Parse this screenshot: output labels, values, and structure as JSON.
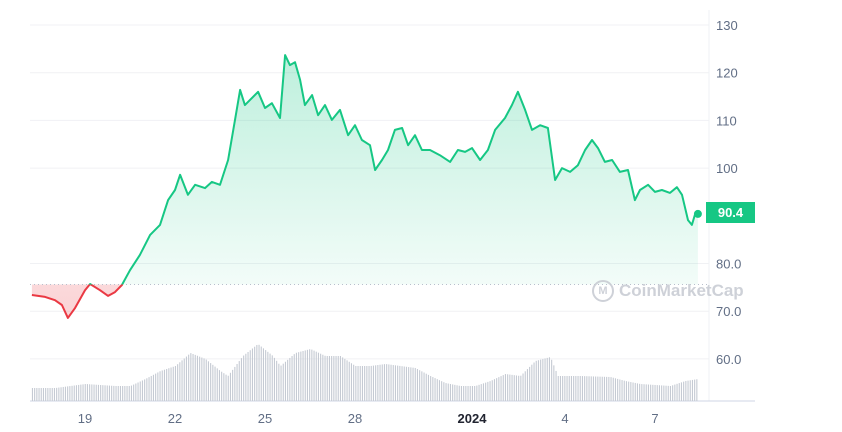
{
  "chart_data": {
    "type": "line",
    "title": "",
    "x_unit": "days since Dec 19",
    "x_ticks": [
      {
        "t": 0,
        "label": "19"
      },
      {
        "t": 3,
        "label": "22"
      },
      {
        "t": 6,
        "label": "25"
      },
      {
        "t": 9,
        "label": "28"
      },
      {
        "t": 12.9,
        "label": "2024",
        "bold": true
      },
      {
        "t": 16,
        "label": "4"
      },
      {
        "t": 19,
        "label": "7"
      }
    ],
    "y_ticks": [
      "130",
      "120",
      "110",
      "100",
      "80.0",
      "70.0",
      "60.0"
    ],
    "y_tick_values": [
      130,
      120,
      110,
      100,
      80,
      70,
      60
    ],
    "ylim": [
      57,
      131
    ],
    "baseline": 75.6,
    "current_price": "90.4",
    "up_color": "#16c784",
    "down_color": "#ea3943",
    "price_series": {
      "t": [
        -1.77,
        -1.33,
        -1.0,
        -0.77,
        -0.57,
        -0.33,
        0,
        0.17,
        0.5,
        0.77,
        1.0,
        1.23,
        1.5,
        1.83,
        2.17,
        2.5,
        2.77,
        3.0,
        3.17,
        3.43,
        3.67,
        4.0,
        4.23,
        4.5,
        4.77,
        5.0,
        5.17,
        5.33,
        5.5,
        5.77,
        6.0,
        6.23,
        6.5,
        6.67,
        6.83,
        7.0,
        7.17,
        7.33,
        7.57,
        7.77,
        8.0,
        8.23,
        8.5,
        8.77,
        9.0,
        9.23,
        9.5,
        9.67,
        9.9,
        10.1,
        10.33,
        10.57,
        10.77,
        11.0,
        11.23,
        11.5,
        11.83,
        12.17,
        12.43,
        12.67,
        12.9,
        13.17,
        13.43,
        13.67,
        14.0,
        14.23,
        14.43,
        14.67,
        14.9,
        15.17,
        15.43,
        15.67,
        15.9,
        16.17,
        16.43,
        16.67,
        16.9,
        17.1,
        17.33,
        17.57,
        17.83,
        18.1,
        18.33,
        18.5,
        18.77,
        19.0,
        19.23,
        19.5,
        19.73,
        19.9,
        20.1,
        20.23,
        20.33,
        20.43
      ],
      "values": [
        73.4,
        73.0,
        72.3,
        71.3,
        68.6,
        70.7,
        74.4,
        75.7,
        74.4,
        73.2,
        74.0,
        75.5,
        78.6,
        81.8,
        86.0,
        88.1,
        93.3,
        95.4,
        98.6,
        94.4,
        96.5,
        95.8,
        97.1,
        96.5,
        101.7,
        110.1,
        116.4,
        113.2,
        114.3,
        116.0,
        112.6,
        113.6,
        110.5,
        123.7,
        121.6,
        122.2,
        118.5,
        113.2,
        115.3,
        111.1,
        113.2,
        110.1,
        112.2,
        106.9,
        109.0,
        105.9,
        104.8,
        99.6,
        101.7,
        103.8,
        108.0,
        108.4,
        104.8,
        106.9,
        103.8,
        103.8,
        102.7,
        101.3,
        103.8,
        103.4,
        104.2,
        101.7,
        103.8,
        108.0,
        110.5,
        113.2,
        116.0,
        112.2,
        108.0,
        109.0,
        108.4,
        97.5,
        100.0,
        99.2,
        100.6,
        103.8,
        105.9,
        104.2,
        101.3,
        101.7,
        99.2,
        99.6,
        93.3,
        95.4,
        96.5,
        95.0,
        95.4,
        94.8,
        96.0,
        94.4,
        89.1,
        88.1,
        90.2,
        90.4
      ]
    },
    "volume_series_relative": {
      "t": [
        -1.77,
        -1,
        0,
        1,
        1.5,
        2,
        2.5,
        3,
        3.5,
        4,
        4.5,
        4.75,
        5.25,
        5.75,
        6.25,
        6.5,
        7,
        7.5,
        8,
        8.5,
        9,
        9.5,
        10,
        10.5,
        11,
        11.5,
        12,
        12.5,
        13,
        13.5,
        14,
        14.5,
        15,
        15.5,
        15.75,
        16.5,
        17.5,
        18,
        18.5,
        19,
        19.5,
        20,
        20.43
      ],
      "values": [
        13,
        13,
        17,
        15,
        15,
        22,
        30,
        35,
        48,
        42,
        30,
        25,
        45,
        57,
        45,
        35,
        48,
        52,
        45,
        45,
        35,
        35,
        37,
        35,
        33,
        25,
        18,
        15,
        15,
        20,
        27,
        25,
        40,
        44,
        25,
        25,
        24,
        20,
        17,
        16,
        15,
        20,
        22
      ]
    },
    "watermark": "CoinMarketCap"
  }
}
